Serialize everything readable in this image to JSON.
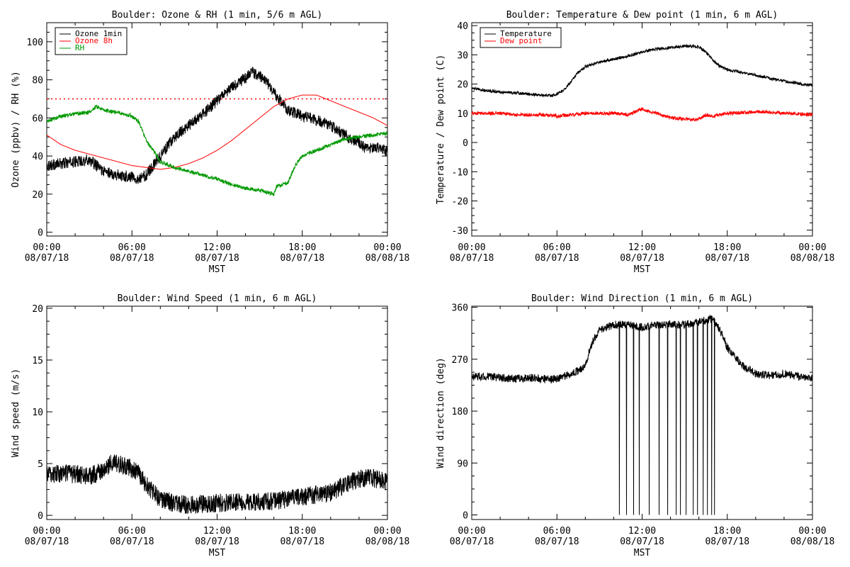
{
  "chart_data": [
    {
      "type": "line",
      "title": "Boulder: Ozone & RH (1 min, 5/6 m AGL)",
      "xlabel": "MST",
      "ylabel": "Ozone (ppbv) / RH (%)",
      "ylim": [
        -2,
        110
      ],
      "yticks": [
        0,
        20,
        40,
        60,
        80,
        100
      ],
      "xlim_hours": [
        0,
        24
      ],
      "xtick_labels": [
        [
          "00:00",
          "08/07/18"
        ],
        [
          "06:00",
          "08/07/18"
        ],
        [
          "12:00",
          "08/07/18"
        ],
        [
          "18:00",
          "08/07/18"
        ],
        [
          "00:00",
          "08/08/18"
        ]
      ],
      "legend": "top-left",
      "grid": false,
      "reference_line": {
        "y": 70,
        "color": "#ff0000",
        "style": "dotted"
      },
      "series": [
        {
          "name": "Ozone 1min",
          "color": "#000000",
          "noise": 3,
          "x": [
            0,
            1,
            2,
            3,
            4,
            5,
            6,
            6.5,
            7,
            7.5,
            8,
            9,
            10,
            11,
            12,
            13,
            14,
            14.5,
            15,
            15.5,
            16,
            17,
            18,
            19,
            20,
            21,
            22,
            22.5,
            23,
            23.5,
            24
          ],
          "y": [
            35,
            36,
            37,
            38,
            32,
            30,
            29,
            28,
            30,
            35,
            40,
            50,
            56,
            62,
            69,
            76,
            81,
            84,
            82,
            79,
            73,
            64,
            61,
            59,
            56,
            51,
            47,
            44,
            44,
            45,
            42
          ]
        },
        {
          "name": "Ozone 8h",
          "color": "#ff0000",
          "noise": 0,
          "x": [
            0,
            1,
            2,
            3,
            4,
            5,
            6,
            7,
            8,
            9,
            10,
            11,
            12,
            13,
            14,
            15,
            16,
            17,
            18,
            19,
            20,
            21,
            22,
            23,
            24
          ],
          "y": [
            51,
            46,
            43,
            41,
            39,
            37,
            35,
            34,
            33,
            34,
            36,
            39,
            43,
            48,
            54,
            60,
            66,
            70,
            72,
            72,
            69,
            66,
            63,
            60,
            56
          ]
        },
        {
          "name": "RH",
          "color": "#009900",
          "noise": 1,
          "x": [
            0,
            1,
            2,
            3,
            3.5,
            4,
            5,
            6,
            6.5,
            7,
            7.5,
            8,
            9,
            10,
            11,
            12,
            13,
            14,
            15,
            15.5,
            16,
            16.2,
            17,
            17.5,
            18,
            19,
            20,
            21,
            22,
            23,
            24
          ],
          "y": [
            58,
            61,
            62,
            63,
            66,
            64,
            63,
            61,
            58,
            48,
            43,
            37,
            34,
            32,
            30,
            28,
            25,
            23,
            22,
            21,
            20,
            24,
            26,
            35,
            40,
            43,
            46,
            49,
            50,
            51,
            52
          ]
        }
      ]
    },
    {
      "type": "line",
      "title": "Boulder: Temperature & Dew point (1 min, 6 m AGL)",
      "xlabel": "MST",
      "ylabel": "Temperature / Dew point (C)",
      "ylim": [
        -32,
        41
      ],
      "yticks": [
        -30,
        -20,
        -10,
        0,
        10,
        20,
        30,
        40
      ],
      "xlim_hours": [
        0,
        24
      ],
      "xtick_labels": [
        [
          "00:00",
          "08/07/18"
        ],
        [
          "06:00",
          "08/07/18"
        ],
        [
          "12:00",
          "08/07/18"
        ],
        [
          "18:00",
          "08/07/18"
        ],
        [
          "00:00",
          "08/08/18"
        ]
      ],
      "legend": "top-left",
      "grid": false,
      "series": [
        {
          "name": "Temperature",
          "color": "#000000",
          "noise": 0.5,
          "x": [
            0,
            1,
            2,
            3,
            4,
            5,
            5.7,
            6.5,
            7,
            7.5,
            8,
            9,
            10,
            11,
            12,
            13,
            14,
            15,
            16,
            16.5,
            17,
            17.5,
            18,
            19,
            20,
            21,
            22,
            23,
            24
          ],
          "y": [
            18.5,
            17.8,
            17.3,
            17,
            16.6,
            16.2,
            16,
            18,
            21,
            24,
            26,
            27.5,
            28.5,
            29.5,
            31,
            32,
            32.5,
            33,
            32.8,
            31,
            28,
            26,
            25,
            24,
            23,
            22,
            21,
            20.2,
            19.5
          ]
        },
        {
          "name": "Dew point",
          "color": "#ff0000",
          "noise": 0.6,
          "x": [
            0,
            1,
            2,
            3,
            4,
            5,
            6,
            7,
            8,
            9,
            10,
            11,
            12,
            12.5,
            13,
            14,
            15,
            16,
            16.5,
            17,
            17.5,
            18,
            19,
            20,
            21,
            22,
            23,
            24
          ],
          "y": [
            10,
            10,
            10,
            9.5,
            9.5,
            9.5,
            9,
            9.5,
            10,
            10,
            10,
            9.5,
            11.5,
            10.5,
            10,
            8.5,
            8,
            8,
            9.5,
            9,
            9.5,
            10,
            10.2,
            10.5,
            10.5,
            10,
            9.8,
            9.5
          ]
        }
      ]
    },
    {
      "type": "line",
      "title": "Boulder: Wind Speed (1 min, 6 m AGL)",
      "xlabel": "MST",
      "ylabel": "Wind speed (m/s)",
      "ylim": [
        -0.4,
        20.2
      ],
      "yticks": [
        0,
        5,
        10,
        15,
        20
      ],
      "xlim_hours": [
        0,
        24
      ],
      "xtick_labels": [
        [
          "00:00",
          "08/07/18"
        ],
        [
          "06:00",
          "08/07/18"
        ],
        [
          "12:00",
          "08/07/18"
        ],
        [
          "18:00",
          "08/07/18"
        ],
        [
          "00:00",
          "08/08/18"
        ]
      ],
      "grid": false,
      "series": [
        {
          "color": "#000000",
          "noise": 0.9,
          "x": [
            0,
            1,
            2,
            3,
            4,
            4.5,
            5,
            6,
            6.5,
            7,
            7.5,
            8,
            9,
            10,
            11,
            12,
            13,
            14,
            15,
            16,
            17,
            18,
            19,
            20,
            21,
            22,
            23,
            24
          ],
          "y": [
            4,
            4,
            4,
            3.8,
            4.3,
            5,
            5,
            4.5,
            4,
            3,
            2.2,
            1.6,
            1.2,
            1,
            1.1,
            1.2,
            1.2,
            1.3,
            1.3,
            1.4,
            1.6,
            1.8,
            2,
            2.2,
            3,
            3.5,
            3.6,
            3.2
          ]
        }
      ]
    },
    {
      "type": "line",
      "title": "Boulder: Wind Direction (1 min, 6 m AGL)",
      "xlabel": "MST",
      "ylabel": "Wind direction (deg)",
      "ylim": [
        -8,
        362
      ],
      "yticks": [
        0,
        90,
        180,
        270,
        360
      ],
      "xlim_hours": [
        0,
        24
      ],
      "xtick_labels": [
        [
          "00:00",
          "08/07/18"
        ],
        [
          "06:00",
          "08/07/18"
        ],
        [
          "12:00",
          "08/07/18"
        ],
        [
          "18:00",
          "08/07/18"
        ],
        [
          "00:00",
          "08/08/18"
        ]
      ],
      "grid": false,
      "series": [
        {
          "color": "#000000",
          "noise": 7,
          "x": [
            0,
            1,
            2,
            3,
            4,
            5,
            6,
            7,
            7.5,
            8,
            8.5,
            9,
            10,
            11,
            12,
            13,
            14,
            15,
            16,
            17,
            17.5,
            18,
            19,
            20,
            21,
            22,
            23,
            24
          ],
          "y": [
            240,
            240,
            238,
            236,
            238,
            236,
            236,
            245,
            250,
            260,
            300,
            320,
            330,
            330,
            325,
            330,
            330,
            330,
            335,
            340,
            320,
            290,
            260,
            245,
            242,
            245,
            240,
            238
          ],
          "dips_to_zero": [
            10.4,
            10.9,
            11.4,
            11.8,
            12.5,
            13.2,
            13.8,
            14.4,
            14.7,
            15.1,
            15.6,
            15.9,
            16.3,
            16.6,
            16.9,
            17.1
          ]
        }
      ]
    }
  ]
}
